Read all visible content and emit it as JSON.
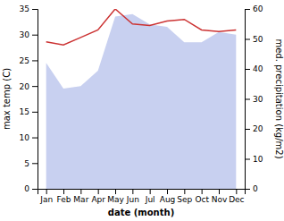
{
  "chart_data": {
    "type": "line",
    "categories": [
      "Jan",
      "Feb",
      "Mar",
      "Apr",
      "May",
      "Jun",
      "Jul",
      "Aug",
      "Sep",
      "Oct",
      "Nov",
      "Dec"
    ],
    "series": [
      {
        "type": "area",
        "color": "#c8d0f0",
        "values": [
          24.5,
          19.5,
          20.0,
          23.0,
          33.5,
          34.0,
          32.0,
          31.5,
          28.5,
          28.5,
          30.5,
          30.0
        ]
      },
      {
        "type": "line",
        "color": "#cc3333",
        "axis": "y2",
        "values": [
          49.0,
          48.0,
          50.5,
          53.0,
          60.0,
          55.0,
          54.5,
          56.0,
          56.5,
          53.0,
          52.5,
          53.0
        ]
      }
    ],
    "xlabel": "date (month)",
    "ylabel": "max temp (C)",
    "y2label": "med. precipitation (kg/m2)",
    "ylim": [
      0,
      35
    ],
    "yticks": [
      0,
      5,
      10,
      15,
      20,
      25,
      30,
      35
    ],
    "y2lim": [
      0,
      60
    ],
    "y2ticks": [
      0,
      10,
      20,
      30,
      40,
      50,
      60
    ]
  }
}
